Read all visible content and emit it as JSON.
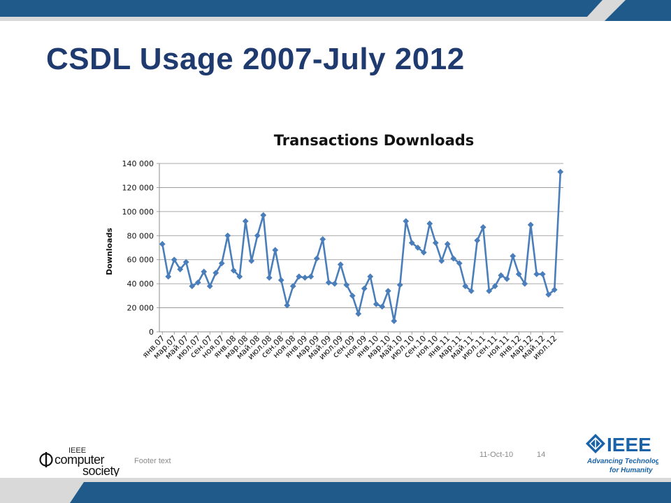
{
  "slide": {
    "title": "CSDL Usage 2007-July 2012",
    "footer_text": "Footer text",
    "date": "11-Oct-10",
    "page_number": "14",
    "left_logo": {
      "line1": "IEEE",
      "line2": "computer",
      "line3": "society"
    },
    "right_logo": {
      "brand": "IEEE",
      "tagline1": "Advancing Technology",
      "tagline2": "for Humanity"
    }
  },
  "colors": {
    "title": "#1f3a6e",
    "bar": "#1f5a8a",
    "series": "#4a7ebb",
    "footer": "#8a8a8a",
    "brand": "#1a63a8"
  },
  "chart_data": {
    "type": "line",
    "title": "Transactions Downloads",
    "xlabel": "",
    "ylabel": "Downloads",
    "ylim": [
      0,
      140000
    ],
    "yticks": [
      0,
      20000,
      40000,
      60000,
      80000,
      100000,
      120000,
      140000
    ],
    "ytick_labels": [
      "0",
      "20 000",
      "40 000",
      "60 000",
      "80 000",
      "100 000",
      "120 000",
      "140 000"
    ],
    "x_tick_labels": [
      "янв.07",
      "мар.07",
      "май.07",
      "июл.07",
      "сен.07",
      "ноя.07",
      "янв.08",
      "мар.08",
      "май.08",
      "июл.08",
      "сен.08",
      "ноя.08",
      "янв.09",
      "мар.09",
      "май.09",
      "июл.09",
      "сен.09",
      "ноя.09",
      "янв.10",
      "мар.10",
      "май.10",
      "июл.10",
      "сен.10",
      "ноя.10",
      "янв.11",
      "мар.11",
      "май.11",
      "июл.11",
      "сен.11",
      "ноя.11",
      "янв.12",
      "мар.12",
      "май.12",
      "июл.12"
    ],
    "grid": true,
    "legend": "none",
    "series": [
      {
        "marker": "diamond",
        "values": [
          73000,
          46000,
          60000,
          52000,
          58000,
          38000,
          41000,
          50000,
          38000,
          49000,
          57000,
          80000,
          51000,
          46000,
          92000,
          59000,
          80000,
          97000,
          45000,
          68000,
          43000,
          22000,
          38000,
          46000,
          45000,
          46000,
          61000,
          77000,
          41000,
          40000,
          56000,
          39000,
          30000,
          15000,
          36000,
          46000,
          23000,
          21000,
          34000,
          9000,
          39000,
          92000,
          74000,
          70000,
          66000,
          90000,
          74000,
          59000,
          73000,
          61000,
          57000,
          38000,
          34000,
          76000,
          87000,
          34000,
          38000,
          47000,
          44000,
          63000,
          48000,
          40000,
          89000,
          48000,
          48000,
          31000,
          35000,
          133000
        ]
      }
    ]
  }
}
